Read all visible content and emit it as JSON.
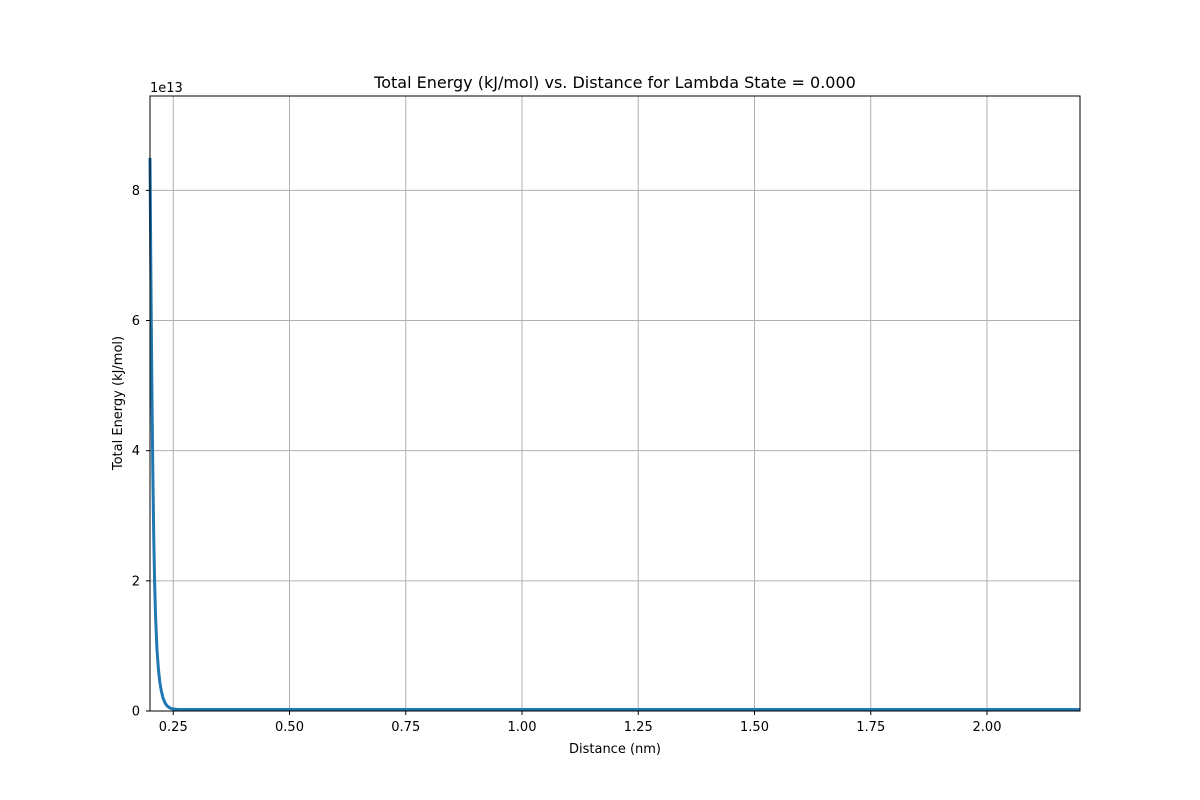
{
  "chart_data": {
    "type": "line",
    "title": "Total Energy (kJ/mol) vs. Distance for Lambda State = 0.000",
    "xlabel": "Distance (nm)",
    "ylabel": "Total Energy (kJ/mol)",
    "y_offset_label": "1e13",
    "xlim": [
      0.2,
      2.2
    ],
    "ylim": [
      0,
      9.45
    ],
    "y_scale_factor": 10000000000000.0,
    "grid": true,
    "xticks": [
      0.25,
      0.5,
      0.75,
      1.0,
      1.25,
      1.5,
      1.75,
      2.0
    ],
    "xtick_labels": [
      "0.25",
      "0.50",
      "0.75",
      "1.00",
      "1.25",
      "1.50",
      "1.75",
      "2.00"
    ],
    "yticks": [
      0,
      2,
      4,
      6,
      8
    ],
    "ytick_labels": [
      "0",
      "2",
      "4",
      "6",
      "8"
    ],
    "series": [
      {
        "color": "#1f77b4",
        "x": [
          0.2,
          0.202,
          0.204,
          0.206,
          0.208,
          0.21,
          0.212,
          0.215,
          0.218,
          0.221,
          0.224,
          0.228,
          0.232,
          0.236,
          0.24,
          0.245,
          0.25,
          0.26,
          0.27,
          0.3,
          0.4,
          0.6,
          1.0,
          1.5,
          2.0,
          2.2
        ],
        "y": [
          8.5,
          6.6,
          5.0,
          3.7,
          2.7,
          1.95,
          1.45,
          0.95,
          0.65,
          0.45,
          0.32,
          0.2,
          0.13,
          0.085,
          0.06,
          0.04,
          0.03,
          0.022,
          0.018,
          0.015,
          0.012,
          0.011,
          0.01,
          0.01,
          0.01,
          0.01
        ]
      }
    ]
  }
}
